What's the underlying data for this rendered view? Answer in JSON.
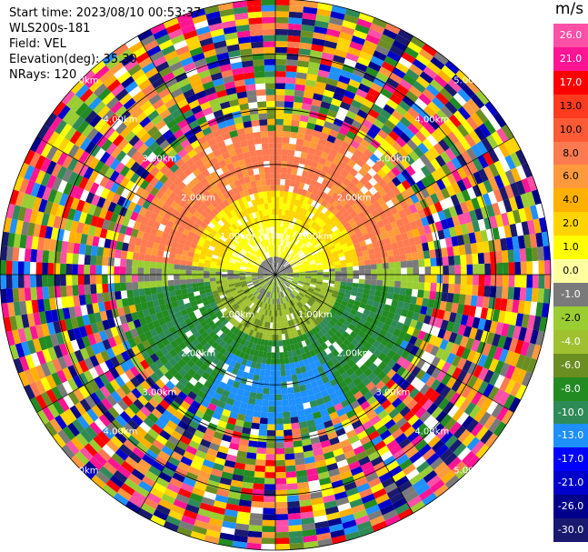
{
  "info": {
    "start_time": "Start time: 2023/08/10 00:53:37",
    "site": "WLS200s-181",
    "field": "Field: VEL",
    "elevation": "Elevation(deg): 35.30",
    "nrays": "NRays: 120"
  },
  "colorbar": {
    "title": "m/s",
    "ticks": [
      "26.0",
      "21.0",
      "17.0",
      "13.0",
      "10.0",
      "8.0",
      "6.0",
      "4.0",
      "2.0",
      "1.0",
      "0.0",
      "-1.0",
      "-2.0",
      "-4.0",
      "-6.0",
      "-8.0",
      "-10.0",
      "-13.0",
      "-17.0",
      "-21.0",
      "-26.0",
      "-30.0"
    ],
    "colors": [
      "#ff4fa6",
      "#ff1493",
      "#ff0000",
      "#ff3b1f",
      "#ff5a36",
      "#ff7a50",
      "#ff9a3c",
      "#ffb000",
      "#ffd400",
      "#ffff00",
      "#ffffa0",
      "#7a7a7a",
      "#9acd32",
      "#a0c030",
      "#6b8e23",
      "#228b22",
      "#2e8b57",
      "#1e90ff",
      "#0000ff",
      "#0000cd",
      "#00008b",
      "#191970"
    ]
  },
  "chart_data": {
    "type": "ppi",
    "field": "VEL",
    "units": "m/s",
    "nrays": 120,
    "elevation_deg": 35.3,
    "range_ring_labels": [
      "1.00km",
      "2.00km",
      "3.00km",
      "4.00km",
      "5.00km"
    ],
    "range_rings_km": [
      1,
      2,
      3,
      4,
      5
    ],
    "max_range_km": 5.0,
    "velocity_ranges": [
      {
        "range_km": [
          0.0,
          2.6
        ],
        "sector": "north",
        "value_range": [
          2.0,
          8.0
        ]
      },
      {
        "range_km": [
          0.0,
          2.6
        ],
        "sector": "south",
        "value_range": [
          -10.0,
          -1.0
        ]
      },
      {
        "range_km": [
          2.6,
          5.0
        ],
        "sector": "all",
        "value_range": [
          -30.0,
          26.0
        ]
      }
    ]
  }
}
